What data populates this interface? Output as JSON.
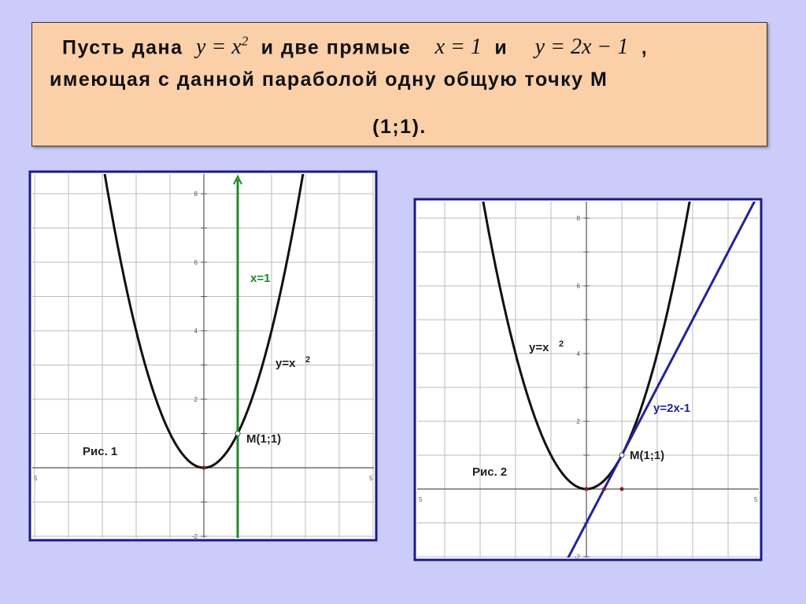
{
  "header": {
    "line1": {
      "t1": "Пусть дана",
      "f1": "y = x",
      "f1sup": "2",
      "t2": "и две прямые",
      "f2": "x = 1",
      "t3": "и",
      "f3": "y = 2x − 1",
      "t4": ","
    },
    "line2": "имеющая с данной параболой одну общую точку М",
    "line3": "(1;1)."
  },
  "figures": [
    {
      "caption": "Рис. 1",
      "yticks": [
        "8",
        "6",
        "4",
        "2",
        "-2"
      ],
      "xticks": [
        "5",
        "5"
      ],
      "labels": {
        "line": "x=1",
        "parabola": "y=x",
        "parabola_sup": "2",
        "point": "M(1;1)"
      }
    },
    {
      "caption": "Рис. 2",
      "yticks": [
        "8",
        "6",
        "4",
        "2",
        "-2"
      ],
      "xticks": [
        "5",
        "5"
      ],
      "labels": {
        "line": "y=2x-1",
        "parabola": "y=x",
        "parabola_sup": "2",
        "point": "M(1;1)"
      }
    }
  ]
}
